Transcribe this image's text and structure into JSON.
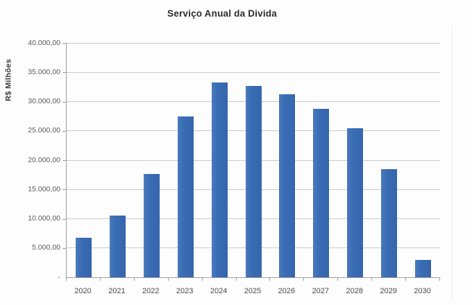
{
  "chart_data": {
    "type": "bar",
    "title": "Serviço Anual da Divida",
    "ylabel": "R$ Milhões",
    "xlabel": "",
    "categories": [
      "2020",
      "2021",
      "2022",
      "2023",
      "2024",
      "2025",
      "2026",
      "2027",
      "2028",
      "2029",
      "2030"
    ],
    "values": [
      6700,
      10500,
      17600,
      27500,
      33300,
      32700,
      31200,
      28800,
      25400,
      18500,
      3000
    ],
    "ylim": [
      0,
      40000
    ],
    "y_ticks": [
      {
        "value": 40000,
        "label": "40.000,00"
      },
      {
        "value": 35000,
        "label": "35.000,00"
      },
      {
        "value": 30000,
        "label": "30.000,00"
      },
      {
        "value": 25000,
        "label": "25.000,00"
      },
      {
        "value": 20000,
        "label": "20.000,00"
      },
      {
        "value": 15000,
        "label": "15.000,00"
      },
      {
        "value": 10000,
        "label": "10.000,00"
      },
      {
        "value": 5000,
        "label": "5.000,00"
      },
      {
        "value": 0,
        "label": "-"
      }
    ],
    "grid": true,
    "legend": "none",
    "colors": {
      "bar": "#3a6db5",
      "gridline": "#c9c9c9",
      "axis": "#9b9b9b",
      "tick_text": "#595959",
      "title_text": "#2b2b2b"
    }
  }
}
